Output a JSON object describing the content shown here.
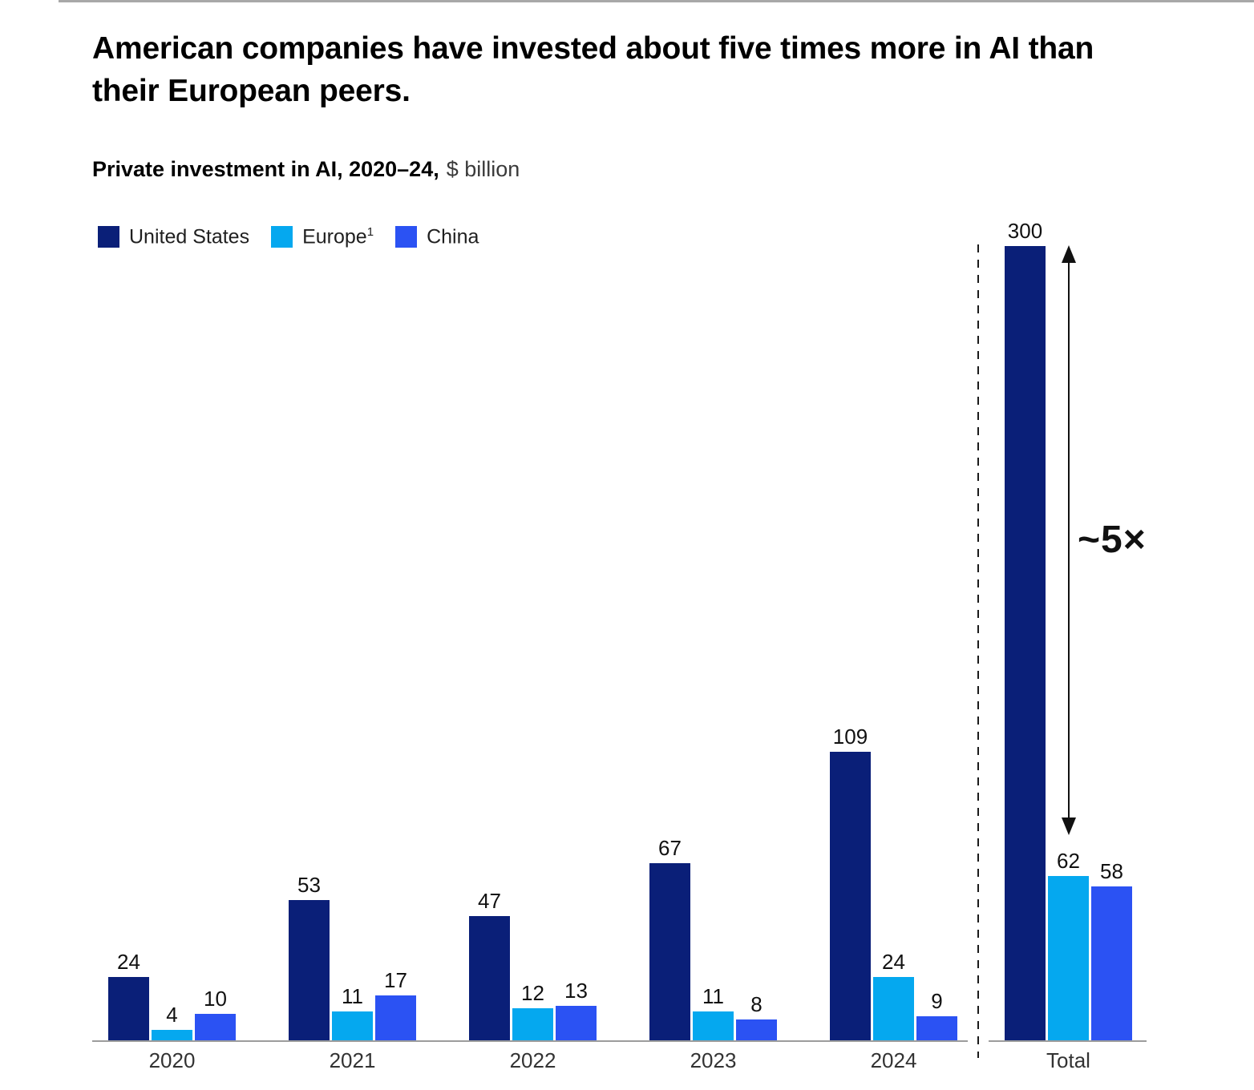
{
  "header": {
    "title_line1": "American companies have invested about five times more in AI than",
    "title_line2": "their European peers.",
    "subtitle_bold": "Private investment in AI, 2020–24,",
    "subtitle_regular": "$ billion"
  },
  "legend": {
    "items": [
      {
        "label": "United States",
        "sup": "",
        "color": "#0a1f78"
      },
      {
        "label": "Europe",
        "sup": "1",
        "color": "#05a8ef"
      },
      {
        "label": "China",
        "sup": "",
        "color": "#2b52f3"
      }
    ]
  },
  "annotation": {
    "multiplier_label": "~5×"
  },
  "chart_data": {
    "type": "bar",
    "title": "Private investment in AI, 2020–24, $ billion",
    "categories": [
      "2020",
      "2021",
      "2022",
      "2023",
      "2024",
      "Total"
    ],
    "series": [
      {
        "name": "United States",
        "color": "#0a1f78",
        "values": [
          24,
          53,
          47,
          67,
          109,
          300
        ]
      },
      {
        "name": "Europe",
        "color": "#05a8ef",
        "values": [
          4,
          11,
          12,
          11,
          24,
          62
        ]
      },
      {
        "name": "China",
        "color": "#2b52f3",
        "values": [
          10,
          17,
          13,
          8,
          9,
          58
        ]
      }
    ],
    "ylim": [
      0,
      300
    ],
    "value_labels": true,
    "grid": false,
    "legend_position": "top-left",
    "separator": {
      "type": "dashed-vertical-line",
      "before_category": "Total"
    },
    "annotation": {
      "text": "~5×",
      "at_category": "Total",
      "from_value": 300,
      "to_value": 62
    }
  }
}
